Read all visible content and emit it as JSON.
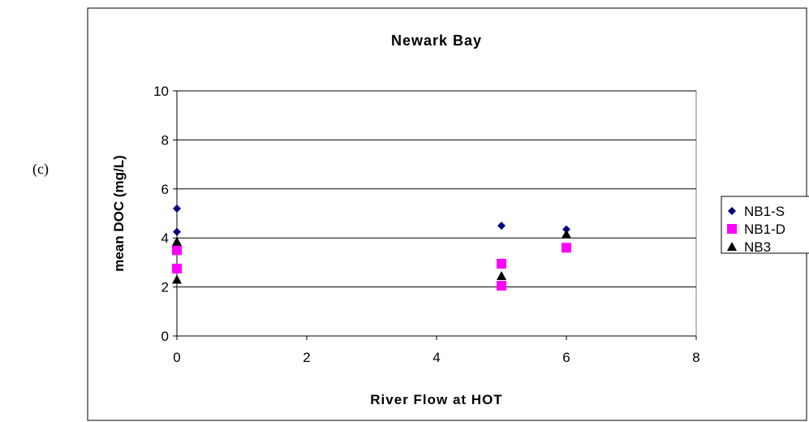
{
  "panel_label": "(c)",
  "chart_data": {
    "type": "scatter",
    "title": "Newark Bay",
    "xlabel": "River Flow at HOT",
    "ylabel": "mean DOC (mg/L)",
    "xlim": [
      0,
      8
    ],
    "ylim": [
      0,
      10
    ],
    "xticks": [
      "0",
      "2",
      "4",
      "6",
      "8"
    ],
    "yticks": [
      "0",
      "2",
      "4",
      "6",
      "8",
      "10"
    ],
    "grid": "horizontal",
    "legend_position": "right",
    "series": [
      {
        "name": "NB1-S",
        "marker": "diamond",
        "color": "#000080",
        "points": [
          [
            0,
            5.2
          ],
          [
            0,
            4.25
          ],
          [
            5,
            4.5
          ],
          [
            6,
            4.35
          ]
        ]
      },
      {
        "name": "NB1-D",
        "marker": "square",
        "color": "#ff00ff",
        "points": [
          [
            0,
            3.5
          ],
          [
            0,
            2.75
          ],
          [
            5,
            2.95
          ],
          [
            5,
            2.05
          ],
          [
            6,
            3.6
          ]
        ]
      },
      {
        "name": "NB3",
        "marker": "triangle",
        "color": "#000000",
        "points": [
          [
            0,
            3.85
          ],
          [
            0,
            2.3
          ],
          [
            5,
            2.45
          ],
          [
            6,
            4.15
          ]
        ]
      }
    ]
  }
}
